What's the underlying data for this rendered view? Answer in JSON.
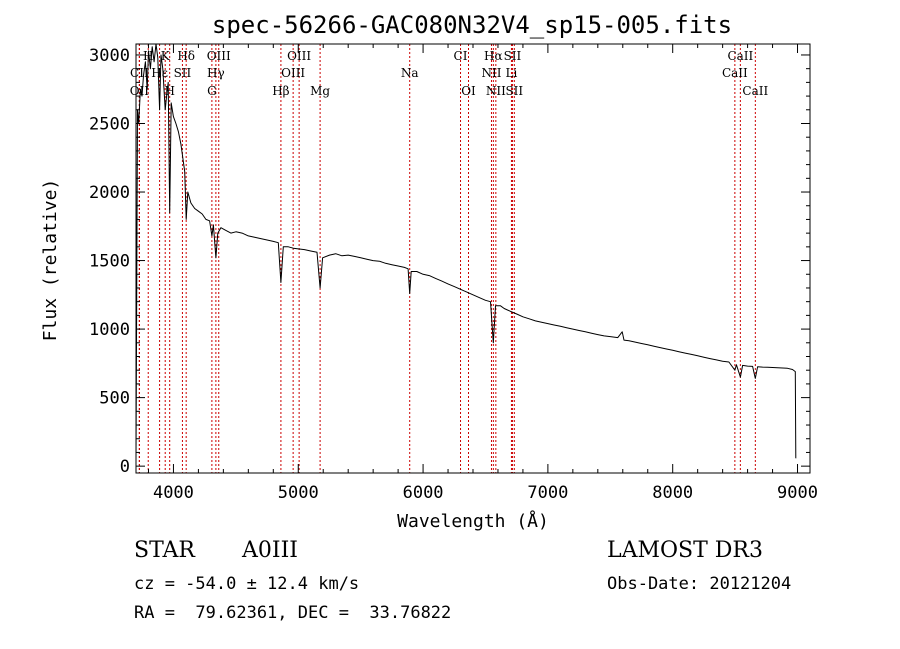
{
  "chart_data": {
    "type": "line",
    "title": "spec-56266-GAC080N32V4_sp15-005.fits",
    "xlabel": "Wavelength (Å)",
    "ylabel": "Flux (relative)",
    "xlim": [
      3700,
      9100
    ],
    "ylim": [
      -50,
      3080
    ],
    "xticks": [
      4000,
      5000,
      6000,
      7000,
      8000,
      9000
    ],
    "yticks": [
      0,
      500,
      1000,
      1500,
      2000,
      2500,
      3000
    ],
    "lines": [
      {
        "label": "H",
        "wl": 3798,
        "row": 0
      },
      {
        "label": "K",
        "wl": 3934,
        "row": 0
      },
      {
        "label": "Hδ",
        "wl": 4102,
        "row": 0
      },
      {
        "label": "OIII",
        "wl": 4363,
        "row": 0
      },
      {
        "label": "OIII",
        "wl": 5007,
        "row": 0
      },
      {
        "label": "CI",
        "wl": 6300,
        "row": 0
      },
      {
        "label": "Hα",
        "wl": 6563,
        "row": 0
      },
      {
        "label": "SII",
        "wl": 6716,
        "row": 0
      },
      {
        "label": "CaII",
        "wl": 8542,
        "row": 0
      },
      {
        "label": "CII",
        "wl": 3727,
        "row": 1
      },
      {
        "label": "Hε",
        "wl": 3889,
        "row": 1
      },
      {
        "label": "SII",
        "wl": 4072,
        "row": 1
      },
      {
        "label": "Hγ",
        "wl": 4340,
        "row": 1
      },
      {
        "label": "OIII",
        "wl": 4959,
        "row": 1
      },
      {
        "label": "Na",
        "wl": 5893,
        "row": 1
      },
      {
        "label": "NII",
        "wl": 6548,
        "row": 1
      },
      {
        "label": "Li",
        "wl": 6708,
        "row": 1
      },
      {
        "label": "CaII",
        "wl": 8498,
        "row": 1
      },
      {
        "label": "OII",
        "wl": 3727,
        "row": 2
      },
      {
        "label": "H",
        "wl": 3970,
        "row": 2
      },
      {
        "label": "G",
        "wl": 4308,
        "row": 2
      },
      {
        "label": "Hβ",
        "wl": 4861,
        "row": 2
      },
      {
        "label": "Mg",
        "wl": 5175,
        "row": 2
      },
      {
        "label": "OI",
        "wl": 6364,
        "row": 2
      },
      {
        "label": "NII",
        "wl": 6583,
        "row": 2
      },
      {
        "label": "SII",
        "wl": 6731,
        "row": 2
      },
      {
        "label": "CaII",
        "wl": 8662,
        "row": 2
      }
    ],
    "series": [
      {
        "name": "spectrum",
        "points": [
          [
            3700,
            50
          ],
          [
            3705,
            1050
          ],
          [
            3712,
            2600
          ],
          [
            3722,
            2500
          ],
          [
            3735,
            2750
          ],
          [
            3748,
            2700
          ],
          [
            3760,
            2850
          ],
          [
            3775,
            2950
          ],
          [
            3790,
            2750
          ],
          [
            3800,
            3030
          ],
          [
            3815,
            2900
          ],
          [
            3830,
            3060
          ],
          [
            3845,
            2950
          ],
          [
            3860,
            3080
          ],
          [
            3875,
            2980
          ],
          [
            3889,
            2600
          ],
          [
            3900,
            3000
          ],
          [
            3915,
            2900
          ],
          [
            3934,
            2600
          ],
          [
            3945,
            2700
          ],
          [
            3958,
            2800
          ],
          [
            3970,
            1850
          ],
          [
            3982,
            2650
          ],
          [
            4000,
            2550
          ],
          [
            4020,
            2500
          ],
          [
            4040,
            2440
          ],
          [
            4060,
            2350
          ],
          [
            4075,
            2250
          ],
          [
            4090,
            2150
          ],
          [
            4102,
            1800
          ],
          [
            4115,
            2000
          ],
          [
            4140,
            1920
          ],
          [
            4170,
            1880
          ],
          [
            4200,
            1860
          ],
          [
            4230,
            1840
          ],
          [
            4260,
            1800
          ],
          [
            4290,
            1790
          ],
          [
            4308,
            1680
          ],
          [
            4320,
            1760
          ],
          [
            4340,
            1520
          ],
          [
            4355,
            1700
          ],
          [
            4380,
            1740
          ],
          [
            4420,
            1720
          ],
          [
            4460,
            1700
          ],
          [
            4500,
            1710
          ],
          [
            4550,
            1700
          ],
          [
            4600,
            1680
          ],
          [
            4650,
            1670
          ],
          [
            4700,
            1660
          ],
          [
            4750,
            1650
          ],
          [
            4800,
            1640
          ],
          [
            4840,
            1630
          ],
          [
            4861,
            1340
          ],
          [
            4880,
            1600
          ],
          [
            4920,
            1600
          ],
          [
            4960,
            1590
          ],
          [
            5000,
            1585
          ],
          [
            5050,
            1580
          ],
          [
            5100,
            1570
          ],
          [
            5150,
            1560
          ],
          [
            5175,
            1300
          ],
          [
            5195,
            1520
          ],
          [
            5250,
            1540
          ],
          [
            5300,
            1550
          ],
          [
            5350,
            1535
          ],
          [
            5400,
            1540
          ],
          [
            5450,
            1530
          ],
          [
            5500,
            1520
          ],
          [
            5550,
            1510
          ],
          [
            5600,
            1500
          ],
          [
            5650,
            1495
          ],
          [
            5700,
            1480
          ],
          [
            5750,
            1470
          ],
          [
            5800,
            1460
          ],
          [
            5850,
            1450
          ],
          [
            5880,
            1440
          ],
          [
            5893,
            1260
          ],
          [
            5905,
            1420
          ],
          [
            5950,
            1420
          ],
          [
            6000,
            1400
          ],
          [
            6050,
            1390
          ],
          [
            6100,
            1370
          ],
          [
            6150,
            1350
          ],
          [
            6200,
            1330
          ],
          [
            6250,
            1310
          ],
          [
            6300,
            1290
          ],
          [
            6350,
            1270
          ],
          [
            6400,
            1250
          ],
          [
            6450,
            1230
          ],
          [
            6500,
            1210
          ],
          [
            6540,
            1200
          ],
          [
            6563,
            900
          ],
          [
            6580,
            1170
          ],
          [
            6620,
            1170
          ],
          [
            6650,
            1150
          ],
          [
            6700,
            1130
          ],
          [
            6750,
            1110
          ],
          [
            6800,
            1090
          ],
          [
            6850,
            1075
          ],
          [
            6900,
            1060
          ],
          [
            6950,
            1050
          ],
          [
            7000,
            1040
          ],
          [
            7050,
            1030
          ],
          [
            7100,
            1020
          ],
          [
            7150,
            1010
          ],
          [
            7200,
            1000
          ],
          [
            7250,
            990
          ],
          [
            7300,
            980
          ],
          [
            7350,
            970
          ],
          [
            7400,
            960
          ],
          [
            7450,
            950
          ],
          [
            7500,
            945
          ],
          [
            7560,
            938
          ],
          [
            7595,
            980
          ],
          [
            7610,
            920
          ],
          [
            7650,
            915
          ],
          [
            7700,
            905
          ],
          [
            7750,
            895
          ],
          [
            7800,
            885
          ],
          [
            7850,
            875
          ],
          [
            7900,
            865
          ],
          [
            7950,
            855
          ],
          [
            8000,
            845
          ],
          [
            8050,
            835
          ],
          [
            8100,
            825
          ],
          [
            8150,
            815
          ],
          [
            8200,
            805
          ],
          [
            8250,
            795
          ],
          [
            8300,
            785
          ],
          [
            8350,
            775
          ],
          [
            8400,
            765
          ],
          [
            8450,
            760
          ],
          [
            8498,
            700
          ],
          [
            8510,
            740
          ],
          [
            8542,
            650
          ],
          [
            8560,
            735
          ],
          [
            8600,
            730
          ],
          [
            8640,
            728
          ],
          [
            8662,
            640
          ],
          [
            8680,
            725
          ],
          [
            8720,
            723
          ],
          [
            8760,
            722
          ],
          [
            8800,
            720
          ],
          [
            8840,
            718
          ],
          [
            8880,
            716
          ],
          [
            8920,
            714
          ],
          [
            8960,
            705
          ],
          [
            8982,
            690
          ],
          [
            8986,
            60
          ],
          [
            8990,
            60
          ]
        ]
      }
    ]
  },
  "info": {
    "class": "STAR",
    "subclass": "A0III",
    "survey": "LAMOST DR3",
    "cz": "cz = -54.0 ± 12.4 km/s",
    "obs_date": "Obs-Date: 20121204",
    "coords": "RA =  79.62361, DEC =  33.76822"
  }
}
